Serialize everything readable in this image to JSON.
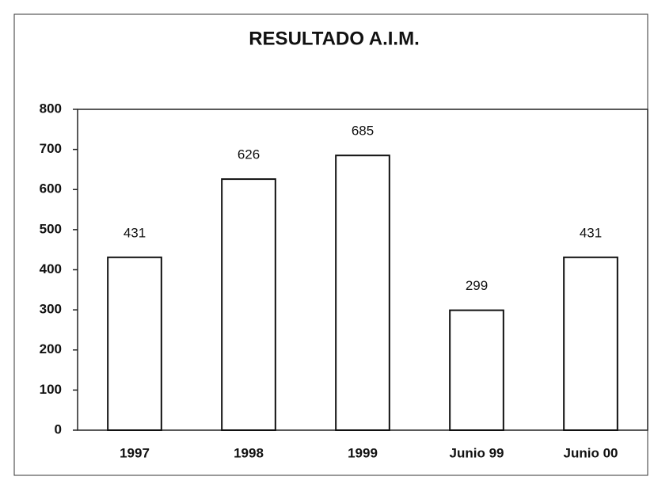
{
  "chart_data": {
    "type": "bar",
    "title": "RESULTADO A.I.M.",
    "categories": [
      "1997",
      "1998",
      "1999",
      "Junio 99",
      "Junio 00"
    ],
    "values": [
      431,
      626,
      685,
      299,
      431
    ],
    "color": "#ffffff",
    "ylim": [
      0,
      800
    ],
    "yticks": [
      0,
      100,
      200,
      300,
      400,
      500,
      600,
      700,
      800
    ],
    "grid": false
  }
}
